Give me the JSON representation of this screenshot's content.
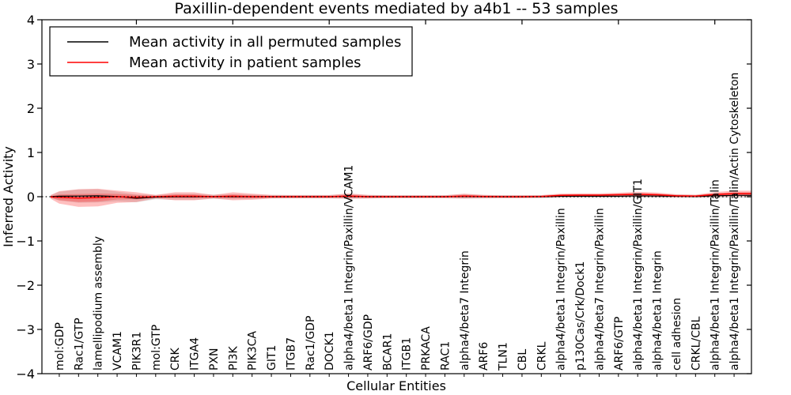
{
  "figure": {
    "title": "Paxillin-dependent events mediated by a4b1 -- 53 samples"
  },
  "legend": {
    "position": "upper left",
    "items": [
      {
        "label": "Mean activity in all permuted samples",
        "color": "#000000"
      },
      {
        "label": "Mean activity in patient samples",
        "color": "#ff0000"
      }
    ]
  },
  "chart_data": {
    "type": "line",
    "title": "Paxillin-dependent events mediated by a4b1 -- 53 samples",
    "xlabel": "Cellular Entities",
    "ylabel": "Inferred Activity",
    "ylim": [
      -4,
      4
    ],
    "xlim": [
      0.1,
      36.9
    ],
    "grid": false,
    "legend_position": "upper left",
    "ytick_values": [
      4,
      3,
      2,
      1,
      0,
      -1,
      -2,
      -3,
      -4
    ],
    "xtick_major_values": [
      5,
      10,
      15,
      20,
      25,
      30,
      35
    ],
    "zero_line": {
      "y": 0,
      "style": "dotted",
      "color": "#000000"
    },
    "band_colors": {
      "permuted": "rgba(130,130,130,0.22)",
      "patient": "rgba(255,0,0,0.25)"
    },
    "categories": [
      "mol:GDP",
      "Rac1/GTP",
      "lamellipodium assembly",
      "VCAM1",
      "PIK3R1",
      "mol:GTP",
      "CRK",
      "ITGA4",
      "PXN",
      "PI3K",
      "PIK3CA",
      "GIT1",
      "ITGB7",
      "Rac1/GDP",
      "DOCK1",
      "alpha4/beta1 Integrin/Paxillin/VCAM1",
      "ARF6/GDP",
      "BCAR1",
      "ITGB1",
      "PRKACA",
      "RAC1",
      "alpha4/beta7 Integrin",
      "ARF6",
      "TLN1",
      "CBL",
      "CRKL",
      "alpha4/beta1 Integrin/Paxillin",
      "p130Cas/Crk/Dock1",
      "alpha4/beta7 Integrin/Paxillin",
      "ARF6/GTP",
      "alpha4/beta1 Integrin/Paxillin/GIT1",
      "alpha4/beta1 Integrin",
      "cell adhesion",
      "CRKL/CBL",
      "alpha4/beta1 Integrin/Paxillin/Talin",
      "alpha4/beta1 Integrin/Paxillin/Talin/Actin Cytoskeleton"
    ],
    "series": [
      {
        "name": "Mean activity in all permuted samples",
        "color": "#000000",
        "values": [
          0.01,
          0.015,
          0.02,
          0.005,
          -0.035,
          -0.01,
          0,
          0,
          0,
          0,
          0,
          0,
          0,
          0,
          0,
          0.005,
          0,
          0,
          0,
          0,
          0,
          0.005,
          0,
          0,
          0,
          0,
          0.01,
          0.01,
          0.01,
          0.01,
          0.02,
          0.015,
          0.01,
          0.005,
          0.02,
          0.03
        ]
      },
      {
        "name": "Mean activity in patient samples",
        "color": "#ff0000",
        "values": [
          -0.015,
          -0.03,
          -0.02,
          0,
          -0.01,
          0,
          0.01,
          0.01,
          0,
          0.01,
          0,
          0,
          0,
          0,
          0,
          0.015,
          0,
          0,
          0,
          0,
          0,
          0.015,
          0.005,
          0,
          0,
          0.005,
          0.03,
          0.035,
          0.035,
          0.045,
          0.055,
          0.045,
          0.02,
          0.015,
          0.05,
          0.07
        ]
      }
    ],
    "bands": [
      {
        "name": "permuted-std-band",
        "center_series": 0,
        "color": "rgba(130,130,130,0.22)",
        "half_widths": [
          0.1,
          0.15,
          0.15,
          0.11,
          0.09,
          0.05,
          0.07,
          0.07,
          0.05,
          0.06,
          0.05,
          0.04,
          0.04,
          0.04,
          0.04,
          0.05,
          0.04,
          0.035,
          0.035,
          0.035,
          0.035,
          0.05,
          0.04,
          0.035,
          0.035,
          0.035,
          0.04,
          0.04,
          0.04,
          0.04,
          0.045,
          0.045,
          0.04,
          0.035,
          0.05,
          0.055
        ]
      },
      {
        "name": "patient-std-band",
        "center_series": 1,
        "color": "rgba(255,0,0,0.25)",
        "half_widths": [
          0.14,
          0.2,
          0.2,
          0.14,
          0.11,
          0.04,
          0.09,
          0.09,
          0.04,
          0.09,
          0.07,
          0.04,
          0.035,
          0.035,
          0.035,
          0.06,
          0.04,
          0.03,
          0.03,
          0.03,
          0.03,
          0.055,
          0.035,
          0.03,
          0.03,
          0.03,
          0.04,
          0.04,
          0.04,
          0.045,
          0.055,
          0.05,
          0.035,
          0.03,
          0.055,
          0.065
        ]
      }
    ]
  }
}
